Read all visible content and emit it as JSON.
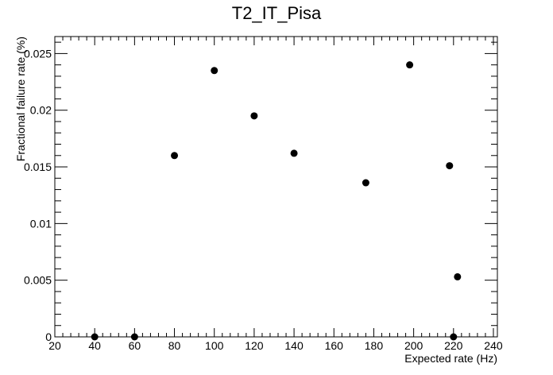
{
  "chart_data": {
    "type": "scatter",
    "title": "T2_IT_Pisa",
    "xlabel": "Expected rate (Hz)",
    "ylabel": "Fractional failure rate (%)",
    "xlim": [
      20,
      242
    ],
    "ylim": [
      0,
      0.0265
    ],
    "xticks": [
      20,
      40,
      60,
      80,
      100,
      120,
      140,
      160,
      180,
      200,
      220,
      240
    ],
    "xtick_labels": [
      "20",
      "40",
      "60",
      "80",
      "100",
      "120",
      "140",
      "160",
      "180",
      "200",
      "220",
      "240"
    ],
    "yticks": [
      0,
      0.005,
      0.01,
      0.015,
      0.02,
      0.025
    ],
    "ytick_labels": [
      "0",
      "0.005",
      "0.01",
      "0.015",
      "0.02",
      "0.025"
    ],
    "grid": false,
    "marker_color": "#000000",
    "points": [
      {
        "x": 40,
        "y": 0.0
      },
      {
        "x": 60,
        "y": 0.0
      },
      {
        "x": 80,
        "y": 0.016
      },
      {
        "x": 100,
        "y": 0.0235
      },
      {
        "x": 120,
        "y": 0.0195
      },
      {
        "x": 140,
        "y": 0.0162
      },
      {
        "x": 176,
        "y": 0.0136
      },
      {
        "x": 198,
        "y": 0.024
      },
      {
        "x": 218,
        "y": 0.0151
      },
      {
        "x": 220,
        "y": 0.0
      },
      {
        "x": 222,
        "y": 0.0053
      }
    ]
  }
}
